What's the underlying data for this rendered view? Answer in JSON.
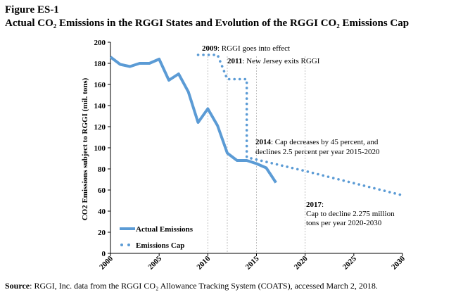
{
  "figure": {
    "label": "Figure ES-1",
    "title": "Actual CO₂ Emissions in the RGGI States and Evolution of the RGGI CO₂ Emissions Cap",
    "source_label": "Source",
    "source_text": ":  RGGI, Inc. data from the RGGI CO₂ Allowance Tracking System (COATS), accessed March 2, 2018."
  },
  "chart_data": {
    "type": "line",
    "title": "Actual CO₂ Emissions in the RGGI States and Evolution of the RGGI CO₂ Emissions Cap",
    "ylabel": "CO2 Emissions subject to RGGI (mil. tons)",
    "xlabel": "",
    "xlim": [
      2000,
      2030
    ],
    "ylim": [
      0,
      200
    ],
    "x_ticks": [
      2000,
      2005,
      2010,
      2015,
      2020,
      2025,
      2030
    ],
    "y_ticks": [
      0,
      20,
      40,
      60,
      80,
      100,
      120,
      140,
      160,
      180,
      200
    ],
    "grid": false,
    "legend_position": "bottom-left",
    "colors": {
      "actual": "#5B9BD5",
      "cap": "#5B9BD5",
      "axis": "#000000",
      "guide": "#b0b0b0"
    },
    "series": [
      {
        "name": "Actual Emissions",
        "style": "solid",
        "points": [
          [
            2000,
            186
          ],
          [
            2001,
            179
          ],
          [
            2002,
            177
          ],
          [
            2003,
            180
          ],
          [
            2004,
            180
          ],
          [
            2005,
            184
          ],
          [
            2006,
            164
          ],
          [
            2007,
            170
          ],
          [
            2008,
            153
          ],
          [
            2009,
            124
          ],
          [
            2010,
            137
          ],
          [
            2011,
            121
          ],
          [
            2012,
            95
          ],
          [
            2013,
            88
          ],
          [
            2014,
            88
          ],
          [
            2015,
            85
          ],
          [
            2016,
            81
          ],
          [
            2017,
            67
          ]
        ]
      },
      {
        "name": "Emissions Cap",
        "style": "dotted",
        "points": [
          [
            2009,
            188
          ],
          [
            2011,
            188
          ],
          [
            2012,
            165
          ],
          [
            2014,
            165
          ],
          [
            2014,
            91
          ],
          [
            2020,
            78
          ],
          [
            2030,
            55
          ]
        ]
      }
    ],
    "guide_lines_x": [
      2010,
      2012,
      2015,
      2020
    ],
    "annotations": [
      {
        "year": "2009",
        "text": ": RGGI goes into effect"
      },
      {
        "year": "2011",
        "text": ": New Jersey exits RGGI"
      },
      {
        "year": "2014",
        "text": ": Cap decreases by 45 percent, and",
        "line2": "declines 2.5 percent per year 2015-2020"
      },
      {
        "year": "2017",
        "text": ":",
        "line2": "Cap to decline 2.275 million",
        "line3": "tons per year 2020-2030"
      }
    ]
  }
}
